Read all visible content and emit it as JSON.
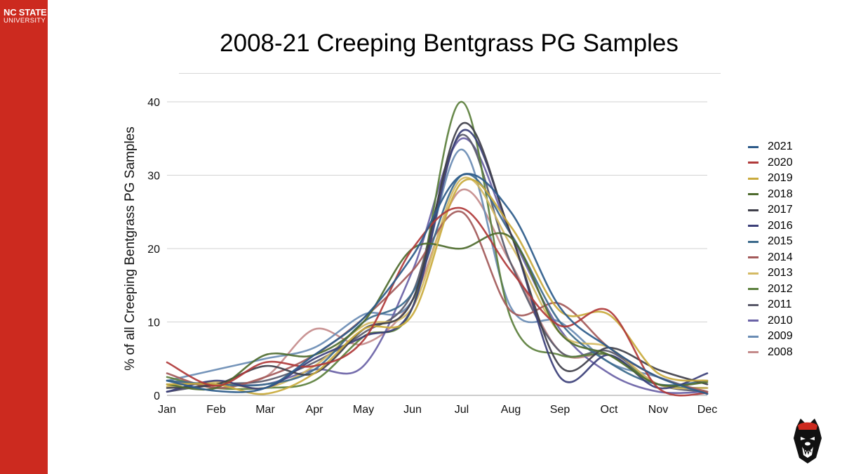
{
  "branding": {
    "line1": "NC STATE",
    "line2": "UNIVERSITY",
    "mascot_icon": "wolf-mascot-icon"
  },
  "colors": {
    "sidebar": "#cc2a1f"
  },
  "chart_data": {
    "type": "line",
    "title": "2008-21 Creeping Bentgrass PG Samples",
    "xlabel": "",
    "ylabel": "% of all Creeping Bentgrass PG Samples",
    "categories": [
      "Jan",
      "Feb",
      "Mar",
      "Apr",
      "May",
      "Jun",
      "Jul",
      "Aug",
      "Sep",
      "Oct",
      "Nov",
      "Dec"
    ],
    "ylim": [
      0,
      40
    ],
    "yticks": [
      0,
      10,
      20,
      30,
      40
    ],
    "grid": true,
    "legend_position": "right",
    "series": [
      {
        "name": "2021",
        "color": "#2d5b8a",
        "values": [
          2.0,
          0.6,
          1.0,
          5.5,
          10.5,
          19.0,
          30.0,
          25.0,
          12.0,
          6.5,
          2.5,
          0.2
        ]
      },
      {
        "name": "2020",
        "color": "#b03a3a",
        "values": [
          4.5,
          1.3,
          4.5,
          4.0,
          7.5,
          20.0,
          25.5,
          17.0,
          9.5,
          11.5,
          1.0,
          0.3
        ]
      },
      {
        "name": "2019",
        "color": "#c9aa3c",
        "values": [
          1.5,
          1.5,
          0.2,
          3.0,
          9.0,
          11.0,
          29.0,
          23.0,
          11.5,
          11.0,
          3.0,
          2.0
        ]
      },
      {
        "name": "2018",
        "color": "#4e6b2e",
        "values": [
          1.5,
          1.0,
          5.5,
          5.5,
          10.0,
          20.0,
          20.0,
          21.5,
          8.5,
          5.5,
          1.5,
          1.8
        ]
      },
      {
        "name": "2017",
        "color": "#3f3f4a",
        "values": [
          1.0,
          1.5,
          4.0,
          3.0,
          9.0,
          13.0,
          37.0,
          22.0,
          4.0,
          6.5,
          3.5,
          1.5
        ]
      },
      {
        "name": "2016",
        "color": "#3b3f78",
        "values": [
          0.5,
          2.0,
          1.0,
          5.0,
          8.0,
          12.0,
          36.0,
          22.0,
          2.5,
          5.5,
          1.0,
          3.0
        ]
      },
      {
        "name": "2015",
        "color": "#3c6a8c",
        "values": [
          2.0,
          1.5,
          1.5,
          3.5,
          10.0,
          14.0,
          30.0,
          22.0,
          10.0,
          4.5,
          1.5,
          2.0
        ]
      },
      {
        "name": "2014",
        "color": "#a35a5a",
        "values": [
          3.0,
          1.0,
          2.5,
          5.5,
          10.5,
          17.0,
          25.0,
          11.5,
          12.5,
          6.5,
          2.5,
          0.5
        ]
      },
      {
        "name": "2013",
        "color": "#d4ba63",
        "values": [
          1.2,
          1.8,
          1.0,
          4.0,
          9.5,
          12.0,
          29.5,
          20.5,
          8.5,
          6.5,
          1.5,
          1.0
        ]
      },
      {
        "name": "2012",
        "color": "#5b7f3c",
        "values": [
          2.5,
          1.0,
          1.0,
          2.0,
          8.0,
          12.0,
          40.0,
          10.5,
          5.5,
          5.5,
          1.5,
          1.0
        ]
      },
      {
        "name": "2011",
        "color": "#5a5a6a",
        "values": [
          0.5,
          1.5,
          2.0,
          4.5,
          8.5,
          14.0,
          35.5,
          18.0,
          6.0,
          6.0,
          1.5,
          0.5
        ]
      },
      {
        "name": "2010",
        "color": "#6a62a6",
        "values": [
          0.5,
          1.5,
          1.5,
          3.5,
          4.0,
          17.0,
          35.0,
          22.0,
          9.0,
          3.0,
          0.5,
          0.5
        ]
      },
      {
        "name": "2009",
        "color": "#6a8cb4",
        "values": [
          2.0,
          3.5,
          5.0,
          6.5,
          11.0,
          13.0,
          33.5,
          12.0,
          10.0,
          4.5,
          2.5,
          0.2
        ]
      },
      {
        "name": "2008",
        "color": "#c48b8b",
        "values": [
          2.0,
          1.5,
          2.5,
          9.0,
          7.0,
          13.0,
          28.0,
          18.0,
          6.0,
          5.5,
          1.5,
          1.0
        ]
      }
    ]
  }
}
